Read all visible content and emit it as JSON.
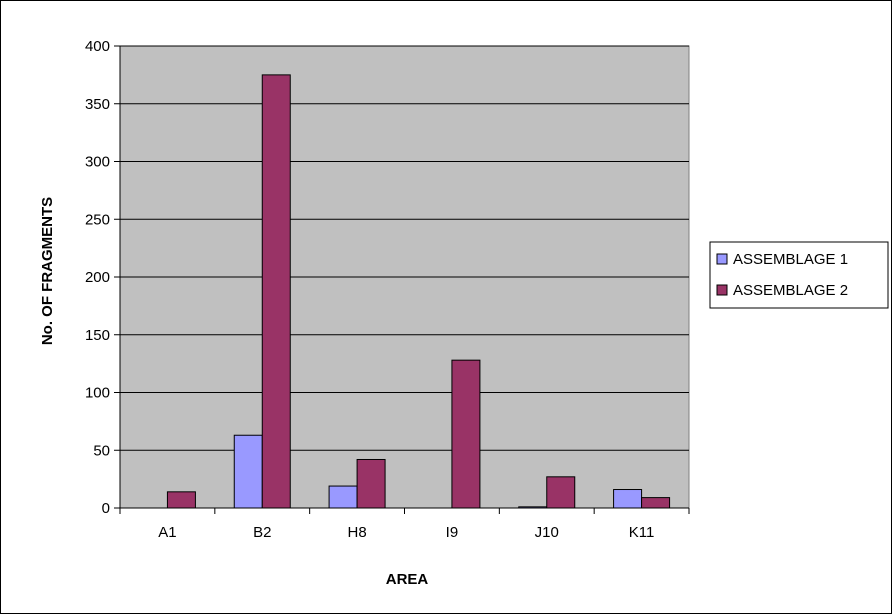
{
  "chart_data": {
    "type": "bar",
    "title": "",
    "xlabel": "AREA",
    "ylabel": "No. OF FRAGMENTS",
    "categories": [
      "A1",
      "B2",
      "H8",
      "I9",
      "J10",
      "K11"
    ],
    "series": [
      {
        "name": "ASSEMBLAGE 1",
        "values": [
          0,
          63,
          19,
          0,
          1,
          16
        ]
      },
      {
        "name": "ASSEMBLAGE 2",
        "values": [
          14,
          375,
          42,
          128,
          27,
          9
        ]
      }
    ],
    "ylim": [
      0,
      400
    ],
    "yticks": [
      0,
      50,
      100,
      150,
      200,
      250,
      300,
      350,
      400
    ],
    "grid": true,
    "legend_position": "right",
    "colors": {
      "plot_background": "#c0c0c0",
      "series": [
        "#9999ff",
        "#993366"
      ],
      "gridline": "#000000"
    }
  }
}
